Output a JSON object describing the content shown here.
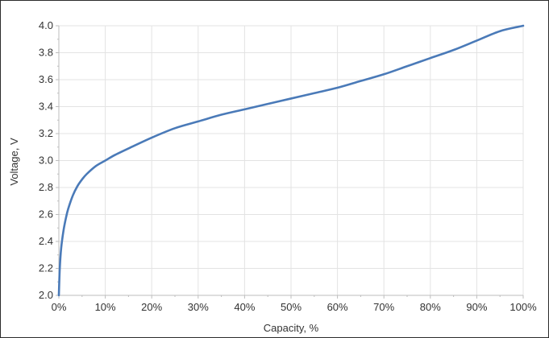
{
  "chart_data": {
    "type": "line",
    "title": "",
    "xlabel": "Capacity, %",
    "ylabel": "Voltage, V",
    "xlim": [
      0,
      100
    ],
    "ylim": [
      2.0,
      4.0
    ],
    "x_ticks": [
      0,
      10,
      20,
      30,
      40,
      50,
      60,
      70,
      80,
      90,
      100
    ],
    "x_tick_labels": [
      "0%",
      "10%",
      "20%",
      "30%",
      "40%",
      "50%",
      "60%",
      "70%",
      "80%",
      "90%",
      "100%"
    ],
    "y_ticks": [
      2.0,
      2.2,
      2.4,
      2.6,
      2.8,
      3.0,
      3.2,
      3.4,
      3.6,
      3.8,
      4.0
    ],
    "y_tick_labels": [
      "2.0",
      "2.2",
      "2.4",
      "2.6",
      "2.8",
      "3.0",
      "3.2",
      "3.4",
      "3.6",
      "3.8",
      "4.0"
    ],
    "grid": true,
    "legend": "none",
    "colors": {
      "line": "#4a7ab8",
      "grid": "#e3e3e3",
      "axis": "#bdbdbd"
    },
    "series": [
      {
        "x": [
          0,
          0.2,
          0.5,
          1,
          1.5,
          2,
          3,
          4,
          5,
          6,
          8,
          10,
          12,
          15,
          20,
          25,
          30,
          35,
          40,
          45,
          50,
          55,
          60,
          65,
          70,
          75,
          80,
          85,
          90,
          95,
          100
        ],
        "y": [
          2.0,
          2.2,
          2.35,
          2.48,
          2.57,
          2.64,
          2.74,
          2.81,
          2.86,
          2.9,
          2.96,
          3.0,
          3.04,
          3.09,
          3.17,
          3.24,
          3.29,
          3.34,
          3.38,
          3.42,
          3.46,
          3.5,
          3.54,
          3.59,
          3.64,
          3.7,
          3.76,
          3.82,
          3.89,
          3.96,
          4.0
        ]
      }
    ]
  }
}
